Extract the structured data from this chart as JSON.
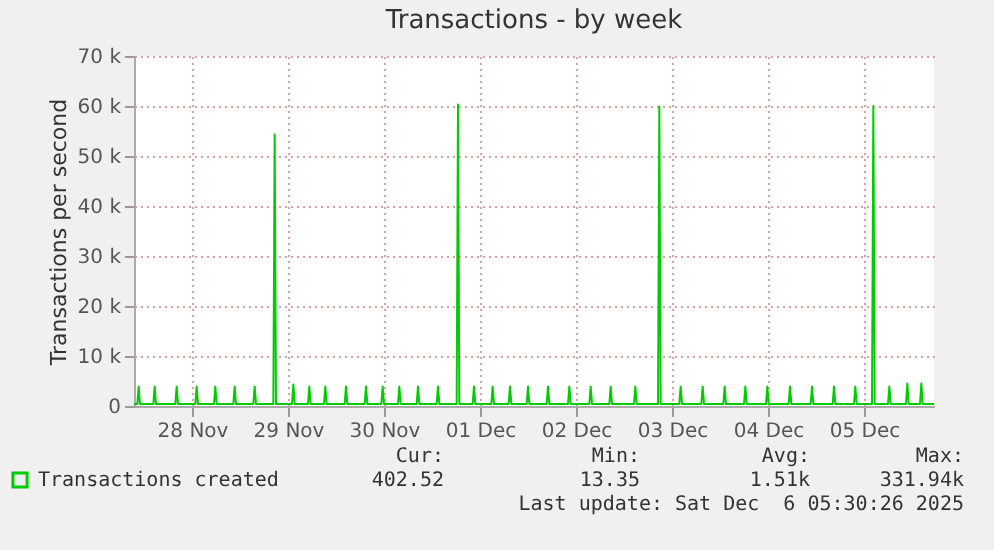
{
  "chart_data": {
    "type": "line",
    "title": "Transactions - by week",
    "ylabel": "Transactions per second",
    "x": [
      "2025-11-27T21:30",
      "2025-11-27T22:20",
      "2025-11-27T22:40",
      "2025-11-27T23:00",
      "2025-11-28T02:20",
      "2025-11-28T02:40",
      "2025-11-28T03:00",
      "2025-11-28T07:50",
      "2025-11-28T08:10",
      "2025-11-28T08:30",
      "2025-11-28T12:50",
      "2025-11-28T13:10",
      "2025-11-28T13:30",
      "2025-11-28T17:30",
      "2025-11-28T17:50",
      "2025-11-28T18:10",
      "2025-11-28T22:20",
      "2025-11-28T22:40",
      "2025-11-28T23:00",
      "2025-11-29T03:20",
      "2025-11-29T03:40",
      "2025-11-29T04:00",
      "2025-11-29T08:20",
      "2025-11-29T08:40",
      "2025-11-29T09:00",
      "2025-11-29T13:00",
      "2025-11-29T13:20",
      "2025-11-29T13:40",
      "2025-11-29T17:00",
      "2025-11-29T17:20",
      "2025-11-29T17:40",
      "2025-11-29T21:00",
      "2025-11-29T21:20",
      "2025-11-29T21:40",
      "2025-11-30T02:10",
      "2025-11-30T02:30",
      "2025-11-30T02:50",
      "2025-11-30T07:10",
      "2025-11-30T07:30",
      "2025-11-30T07:50",
      "2025-11-30T11:20",
      "2025-11-30T11:40",
      "2025-11-30T12:00",
      "2025-11-30T15:30",
      "2025-11-30T15:50",
      "2025-11-30T16:10",
      "2025-11-30T20:10",
      "2025-11-30T20:30",
      "2025-11-30T20:50",
      "2025-12-01T01:10",
      "2025-12-01T01:30",
      "2025-12-01T01:50",
      "2025-12-01T06:10",
      "2025-12-01T06:30",
      "2025-12-01T06:50",
      "2025-12-01T10:10",
      "2025-12-01T10:30",
      "2025-12-01T10:50",
      "2025-12-01T14:50",
      "2025-12-01T15:10",
      "2025-12-01T15:30",
      "2025-12-01T19:10",
      "2025-12-01T19:30",
      "2025-12-01T19:50",
      "2025-12-01T23:40",
      "2025-12-02T00:00",
      "2025-12-02T00:20",
      "2025-12-02T04:40",
      "2025-12-02T05:00",
      "2025-12-02T05:20",
      "2025-12-02T10:00",
      "2025-12-02T10:20",
      "2025-12-02T10:40",
      "2025-12-02T15:20",
      "2025-12-02T15:40",
      "2025-12-02T16:00",
      "2025-12-02T20:20",
      "2025-12-02T20:40",
      "2025-12-02T21:00",
      "2025-12-03T02:30",
      "2025-12-03T02:50",
      "2025-12-03T03:10",
      "2025-12-03T08:30",
      "2025-12-03T08:50",
      "2025-12-03T09:10",
      "2025-12-03T13:50",
      "2025-12-03T14:10",
      "2025-12-03T14:30",
      "2025-12-03T19:20",
      "2025-12-03T19:40",
      "2025-12-03T20:00",
      "2025-12-04T00:50",
      "2025-12-04T01:10",
      "2025-12-04T01:30",
      "2025-12-04T06:00",
      "2025-12-04T06:20",
      "2025-12-04T06:40",
      "2025-12-04T11:30",
      "2025-12-04T11:50",
      "2025-12-04T12:10",
      "2025-12-04T17:10",
      "2025-12-04T17:30",
      "2025-12-04T17:50",
      "2025-12-04T22:40",
      "2025-12-04T23:00",
      "2025-12-04T23:20",
      "2025-12-05T04:10",
      "2025-12-05T04:30",
      "2025-12-05T04:50",
      "2025-12-05T09:30",
      "2025-12-05T09:50",
      "2025-12-05T10:10",
      "2025-12-05T14:00",
      "2025-12-05T14:20",
      "2025-12-05T14:40",
      "2025-12-05T18:00",
      "2025-12-05T18:20",
      "2025-12-05T18:40",
      "2025-12-05T22:30",
      "2025-12-05T22:50",
      "2025-12-05T23:10",
      "2025-12-06T02:00",
      "2025-12-06T02:20",
      "2025-12-06T02:40",
      "2025-12-06T05:30"
    ],
    "series": [
      {
        "name": "Transactions created",
        "color": "#00cc00",
        "values": [
          400,
          400,
          3900,
          400,
          400,
          3900,
          400,
          400,
          3900,
          400,
          400,
          3900,
          400,
          400,
          3900,
          400,
          400,
          3900,
          400,
          400,
          3900,
          400,
          400,
          54300,
          400,
          400,
          4300,
          400,
          400,
          3900,
          400,
          400,
          3900,
          400,
          400,
          3900,
          400,
          400,
          3900,
          400,
          400,
          3900,
          400,
          400,
          3900,
          400,
          400,
          3900,
          400,
          400,
          3900,
          400,
          400,
          60300,
          400,
          400,
          3900,
          400,
          400,
          3900,
          400,
          400,
          3900,
          400,
          400,
          3900,
          400,
          400,
          3900,
          400,
          400,
          3900,
          400,
          400,
          3900,
          400,
          400,
          3900,
          400,
          400,
          3900,
          400,
          400,
          59900,
          400,
          400,
          3900,
          400,
          400,
          3900,
          400,
          400,
          3900,
          400,
          400,
          3900,
          400,
          400,
          3900,
          400,
          400,
          3900,
          400,
          400,
          3900,
          400,
          400,
          3900,
          400,
          400,
          3900,
          400,
          400,
          60000,
          400,
          400,
          3900,
          400,
          400,
          4500,
          400,
          400,
          4500,
          400,
          400
        ]
      }
    ],
    "xlim": [
      "2025-11-27T21:30",
      "2025-12-06T05:30"
    ],
    "xticks": [
      {
        "value": "2025-11-28T12:00",
        "label": "28 Nov"
      },
      {
        "value": "2025-11-29T12:00",
        "label": "29 Nov"
      },
      {
        "value": "2025-11-30T12:00",
        "label": "30 Nov"
      },
      {
        "value": "2025-12-01T12:00",
        "label": "01 Dec"
      },
      {
        "value": "2025-12-02T12:00",
        "label": "02 Dec"
      },
      {
        "value": "2025-12-03T12:00",
        "label": "03 Dec"
      },
      {
        "value": "2025-12-04T12:00",
        "label": "04 Dec"
      },
      {
        "value": "2025-12-05T12:00",
        "label": "05 Dec"
      }
    ],
    "ylim": [
      0,
      70000
    ],
    "yticks": [
      0,
      {
        "value": 10000,
        "label": "10 k"
      },
      {
        "value": 20000,
        "label": "20 k"
      },
      {
        "value": 30000,
        "label": "30 k"
      },
      {
        "value": 40000,
        "label": "40 k"
      },
      {
        "value": 50000,
        "label": "50 k"
      },
      {
        "value": 60000,
        "label": "60 k"
      },
      {
        "value": 70000,
        "label": "70 k"
      }
    ],
    "grid": true,
    "legend": "bottom left",
    "annotations": [
      "Cur:",
      "402.52",
      "Min:",
      "13.35",
      "Avg:",
      "1.51k",
      "Max:",
      "331.94k",
      "Last update: Sat Dec  6 05:30:26 2025"
    ]
  }
}
